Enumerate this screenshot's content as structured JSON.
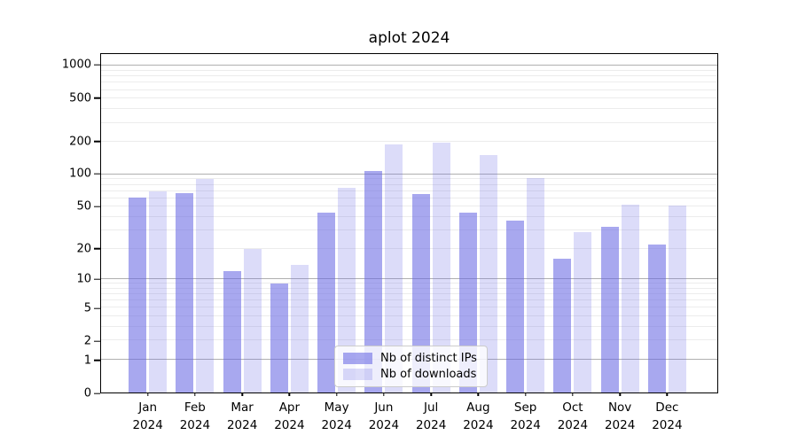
{
  "title": "aplot 2024",
  "chart_data": {
    "type": "bar",
    "title": "aplot 2024",
    "yscale": "log1p",
    "ylim": [
      0,
      1285
    ],
    "grid": "on",
    "legend_position": "lower center",
    "year": "2024",
    "categories": [
      "Jan",
      "Feb",
      "Mar",
      "Apr",
      "May",
      "Jun",
      "Jul",
      "Aug",
      "Sep",
      "Oct",
      "Nov",
      "Dec"
    ],
    "series": [
      {
        "name": "Nb of distinct IPs",
        "color": "rgba(102,102,227,0.57)",
        "values": [
          61,
          67,
          12,
          9,
          44,
          107,
          66,
          44,
          37,
          16,
          32,
          22
        ]
      },
      {
        "name": "Nb of downloads",
        "color": "rgba(102,102,227,0.23)",
        "values": [
          70,
          90,
          20,
          14,
          75,
          190,
          195,
          150,
          93,
          29,
          52,
          51
        ]
      }
    ],
    "yticks": [
      0,
      1,
      2,
      5,
      10,
      20,
      50,
      100,
      200,
      500,
      1000
    ],
    "ytick_labels": [
      "0",
      "1",
      "2",
      "5",
      "10",
      "20",
      "50",
      "100",
      "200",
      "500",
      "1000"
    ],
    "major_gridlines": [
      1,
      10,
      100,
      1000
    ],
    "minor_gridlines": [
      2,
      3,
      4,
      5,
      6,
      7,
      8,
      9,
      20,
      30,
      40,
      50,
      60,
      70,
      80,
      90,
      200,
      300,
      400,
      500,
      600,
      700,
      800,
      900
    ]
  },
  "colors": {
    "axis": "#000000",
    "major_grid": "#b0b0b0",
    "minor_grid": "#ececec",
    "legend_border": "#cccccc",
    "legend_background": "rgba(255,255,255,0.8)"
  }
}
